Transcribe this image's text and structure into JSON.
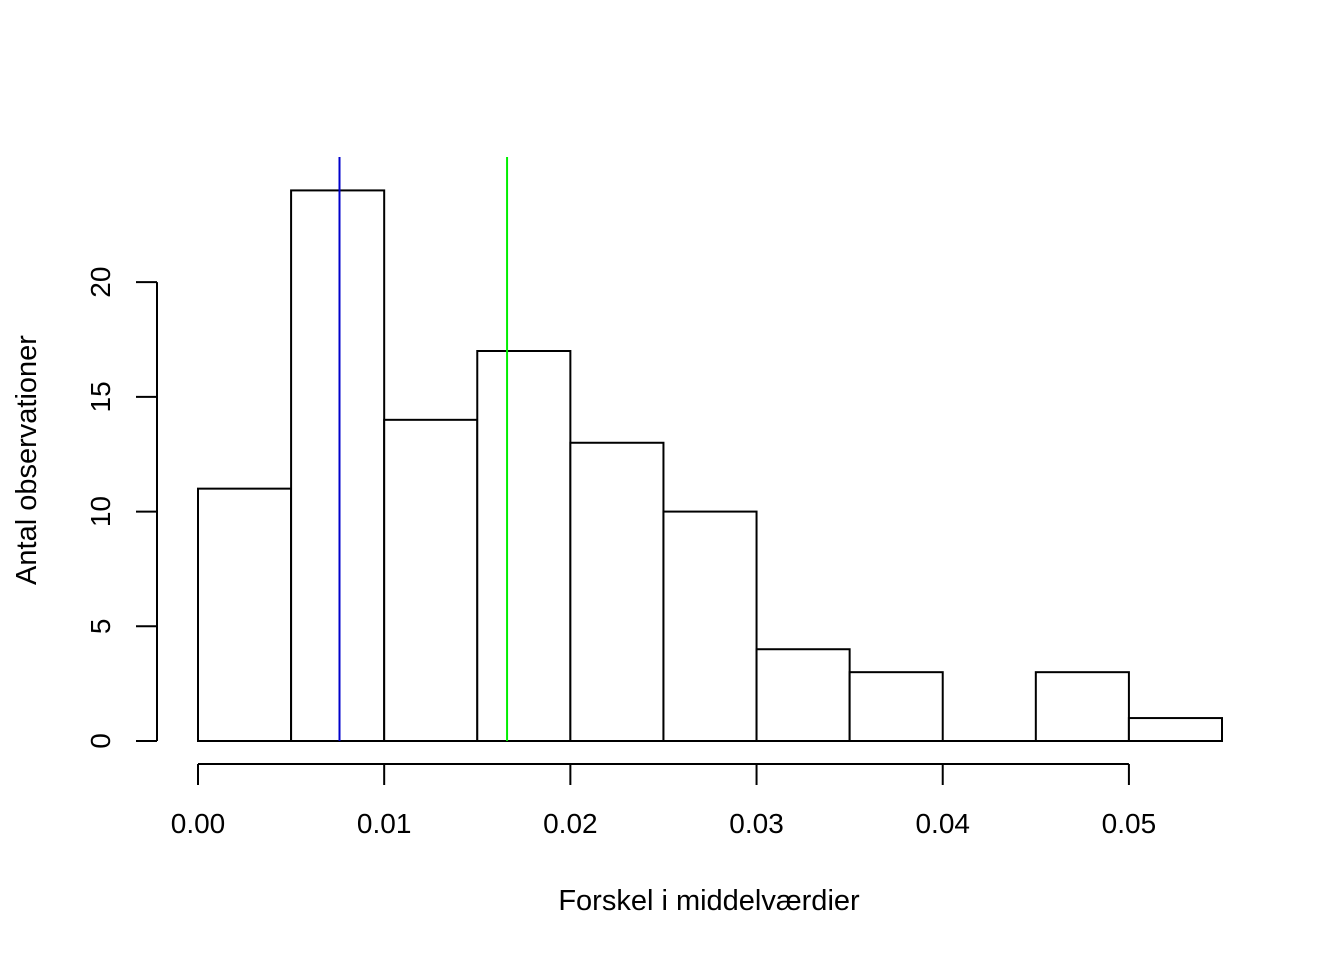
{
  "chart_data": {
    "type": "bar",
    "title": "",
    "xlabel": "Forskel i middelværdier",
    "ylabel": "Antal observationer",
    "bins": [
      {
        "from": 0.0,
        "to": 0.005,
        "count": 11
      },
      {
        "from": 0.005,
        "to": 0.01,
        "count": 24
      },
      {
        "from": 0.01,
        "to": 0.015,
        "count": 14
      },
      {
        "from": 0.015,
        "to": 0.02,
        "count": 17
      },
      {
        "from": 0.02,
        "to": 0.025,
        "count": 13
      },
      {
        "from": 0.025,
        "to": 0.03,
        "count": 10
      },
      {
        "from": 0.03,
        "to": 0.035,
        "count": 4
      },
      {
        "from": 0.035,
        "to": 0.04,
        "count": 3
      },
      {
        "from": 0.04,
        "to": 0.045,
        "count": 0
      },
      {
        "from": 0.045,
        "to": 0.05,
        "count": 3
      },
      {
        "from": 0.05,
        "to": 0.055,
        "count": 1
      }
    ],
    "x_ticks": [
      {
        "value": 0.0,
        "label": "0.00"
      },
      {
        "value": 0.01,
        "label": "0.01"
      },
      {
        "value": 0.02,
        "label": "0.02"
      },
      {
        "value": 0.03,
        "label": "0.03"
      },
      {
        "value": 0.04,
        "label": "0.04"
      },
      {
        "value": 0.05,
        "label": "0.05"
      }
    ],
    "y_ticks": [
      {
        "value": 0,
        "label": "0"
      },
      {
        "value": 5,
        "label": "5"
      },
      {
        "value": 10,
        "label": "10"
      },
      {
        "value": 15,
        "label": "15"
      },
      {
        "value": 20,
        "label": "20"
      }
    ],
    "xlim": [
      0,
      0.055
    ],
    "ylim": [
      0,
      25.5
    ],
    "vertical_lines": [
      {
        "x": 0.0076,
        "color": "#0000cc"
      },
      {
        "x": 0.0166,
        "color": "#00ee00"
      }
    ],
    "grid": false,
    "bar_fill": "#ffffff",
    "bar_stroke": "#000000"
  }
}
